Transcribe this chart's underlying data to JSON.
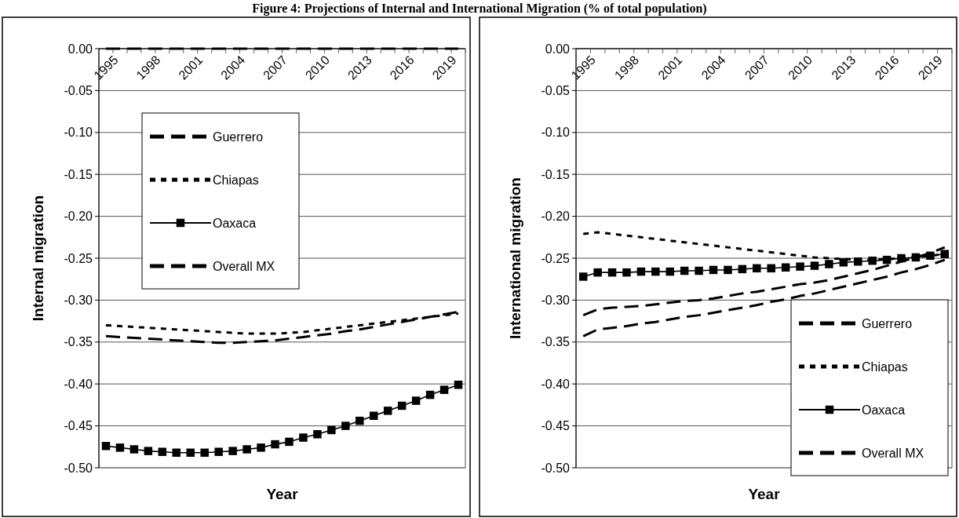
{
  "chart_data": [
    {
      "type": "line",
      "title": "Figure 4: Projections of Internal and International Migration (% of total population)",
      "xlabel": "Year",
      "ylabel": "Internal migration",
      "categories": [
        "1995",
        null,
        null,
        "1998",
        null,
        null,
        "2001",
        null,
        null,
        "2004",
        null,
        null,
        "2007",
        null,
        null,
        "2010",
        null,
        null,
        "2013",
        null,
        null,
        "2016",
        null,
        null,
        "2019",
        null
      ],
      "ylim": [
        -0.5,
        0
      ],
      "yticks": [
        {
          "value": 0,
          "label": "0.00"
        },
        {
          "value": -0.05,
          "label": "-0.05"
        },
        {
          "value": -0.1,
          "label": "-0.10"
        },
        {
          "value": -0.15,
          "label": "-0.15"
        },
        {
          "value": -0.2,
          "label": "-0.20"
        },
        {
          "value": -0.25,
          "label": "-0.25"
        },
        {
          "value": -0.3,
          "label": "-0.30"
        },
        {
          "value": -0.35,
          "label": "-0.35"
        },
        {
          "value": -0.4,
          "label": "-0.40"
        },
        {
          "value": -0.45,
          "label": "-0.45"
        },
        {
          "value": -0.5,
          "label": "-0.50"
        }
      ],
      "grid": "y",
      "legend": "top left",
      "series": [
        {
          "name": "Guerrero",
          "color": "#000000",
          "line_style": "dashed",
          "marker": "none",
          "values": [
            -0.343,
            -0.344,
            -0.345,
            -0.346,
            -0.347,
            -0.348,
            -0.349,
            -0.35,
            -0.351,
            -0.351,
            -0.35,
            -0.349,
            -0.348,
            -0.346,
            -0.344,
            -0.342,
            -0.34,
            -0.337,
            -0.335,
            -0.332,
            -0.329,
            -0.326,
            -0.323,
            -0.32,
            -0.317,
            -0.314
          ]
        },
        {
          "name": "Chiapas",
          "color": "#000000",
          "line_style": "dotted",
          "marker": "none",
          "values": [
            -0.33,
            -0.331,
            -0.332,
            -0.333,
            -0.334,
            -0.335,
            -0.336,
            -0.337,
            -0.338,
            -0.339,
            -0.34,
            -0.34,
            -0.34,
            -0.339,
            -0.338,
            -0.336,
            -0.334,
            -0.332,
            -0.33,
            -0.328,
            -0.326,
            -0.324,
            -0.322,
            -0.32,
            -0.318,
            -0.316
          ]
        },
        {
          "name": "Oaxaca",
          "color": "#000000",
          "line_style": "solid",
          "marker": "square",
          "values": [
            -0.474,
            -0.476,
            -0.478,
            -0.48,
            -0.481,
            -0.482,
            -0.482,
            -0.482,
            -0.481,
            -0.48,
            -0.478,
            -0.476,
            -0.472,
            -0.469,
            -0.464,
            -0.46,
            -0.455,
            -0.45,
            -0.444,
            -0.438,
            -0.432,
            -0.426,
            -0.42,
            -0.413,
            -0.407,
            -0.401
          ]
        },
        {
          "name": "Overall MX",
          "color": "#000000",
          "line_style": "dashed",
          "marker": "none",
          "values": [
            0,
            0,
            0,
            0,
            0,
            0,
            0,
            0,
            0,
            0,
            0,
            0,
            0,
            0,
            0,
            0,
            0,
            0,
            0,
            0,
            0,
            0,
            0,
            0,
            0,
            0
          ]
        }
      ]
    },
    {
      "type": "line",
      "xlabel": "Year",
      "ylabel": "International migration",
      "categories": [
        "1995",
        null,
        null,
        "1998",
        null,
        null,
        "2001",
        null,
        null,
        "2004",
        null,
        null,
        "2007",
        null,
        null,
        "2010",
        null,
        null,
        "2013",
        null,
        null,
        "2016",
        null,
        null,
        "2019",
        null
      ],
      "ylim": [
        -0.5,
        0
      ],
      "yticks": [
        {
          "value": 0,
          "label": "0.00"
        },
        {
          "value": -0.05,
          "label": "-0.05"
        },
        {
          "value": -0.1,
          "label": "-0.10"
        },
        {
          "value": -0.15,
          "label": "-0.15"
        },
        {
          "value": -0.2,
          "label": "-0.20"
        },
        {
          "value": -0.25,
          "label": "-0.25"
        },
        {
          "value": -0.3,
          "label": "-0.30"
        },
        {
          "value": -0.35,
          "label": "-0.35"
        },
        {
          "value": -0.4,
          "label": "-0.40"
        },
        {
          "value": -0.45,
          "label": "-0.45"
        },
        {
          "value": -0.5,
          "label": "-0.50"
        }
      ],
      "grid": "y",
      "legend": "bottom right",
      "series": [
        {
          "name": "Guerrero",
          "color": "#000000",
          "line_style": "dashed",
          "marker": "none",
          "values": [
            -0.343,
            -0.335,
            -0.333,
            -0.331,
            -0.328,
            -0.326,
            -0.323,
            -0.32,
            -0.318,
            -0.315,
            -0.312,
            -0.309,
            -0.306,
            -0.302,
            -0.299,
            -0.295,
            -0.292,
            -0.288,
            -0.284,
            -0.28,
            -0.276,
            -0.272,
            -0.267,
            -0.263,
            -0.258,
            -0.252
          ]
        },
        {
          "name": "Chiapas",
          "color": "#000000",
          "line_style": "dotted",
          "marker": "none",
          "values": [
            -0.221,
            -0.219,
            -0.221,
            -0.223,
            -0.225,
            -0.227,
            -0.229,
            -0.231,
            -0.233,
            -0.235,
            -0.237,
            -0.239,
            -0.241,
            -0.243,
            -0.245,
            -0.247,
            -0.249,
            -0.25,
            -0.251,
            -0.252,
            -0.252,
            -0.251,
            -0.25,
            -0.249,
            -0.247,
            -0.245
          ]
        },
        {
          "name": "Oaxaca",
          "color": "#000000",
          "line_style": "solid",
          "marker": "square",
          "values": [
            -0.272,
            -0.267,
            -0.267,
            -0.267,
            -0.266,
            -0.266,
            -0.266,
            -0.265,
            -0.265,
            -0.264,
            -0.264,
            -0.263,
            -0.262,
            -0.262,
            -0.261,
            -0.26,
            -0.259,
            -0.257,
            -0.255,
            -0.254,
            -0.253,
            -0.252,
            -0.25,
            -0.249,
            -0.247,
            -0.245
          ]
        },
        {
          "name": "Overall MX",
          "color": "#000000",
          "line_style": "dashed",
          "marker": "none",
          "values": [
            -0.318,
            -0.311,
            -0.309,
            -0.308,
            -0.307,
            -0.305,
            -0.303,
            -0.301,
            -0.3,
            -0.298,
            -0.295,
            -0.292,
            -0.29,
            -0.287,
            -0.284,
            -0.281,
            -0.279,
            -0.276,
            -0.272,
            -0.268,
            -0.264,
            -0.259,
            -0.254,
            -0.249,
            -0.244,
            -0.237
          ]
        }
      ]
    }
  ]
}
